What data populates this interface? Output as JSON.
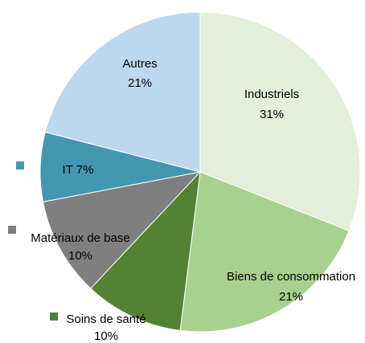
{
  "chart_data": {
    "type": "pie",
    "categories": [
      "Industriels",
      "Biens de consommation",
      "Soins de santé",
      "Matériaux de base",
      "IT",
      "Autres"
    ],
    "values": [
      31,
      21,
      10,
      10,
      7,
      21
    ],
    "value_labels": [
      "31%",
      "21%",
      "10%",
      "10%",
      "7%",
      "21%"
    ],
    "colors": [
      "#e2efd9",
      "#a9d18e",
      "#548235",
      "#7f7f7f",
      "#4397b1",
      "#bdd7ee"
    ],
    "start_angle": 90,
    "direction": "clockwise"
  }
}
